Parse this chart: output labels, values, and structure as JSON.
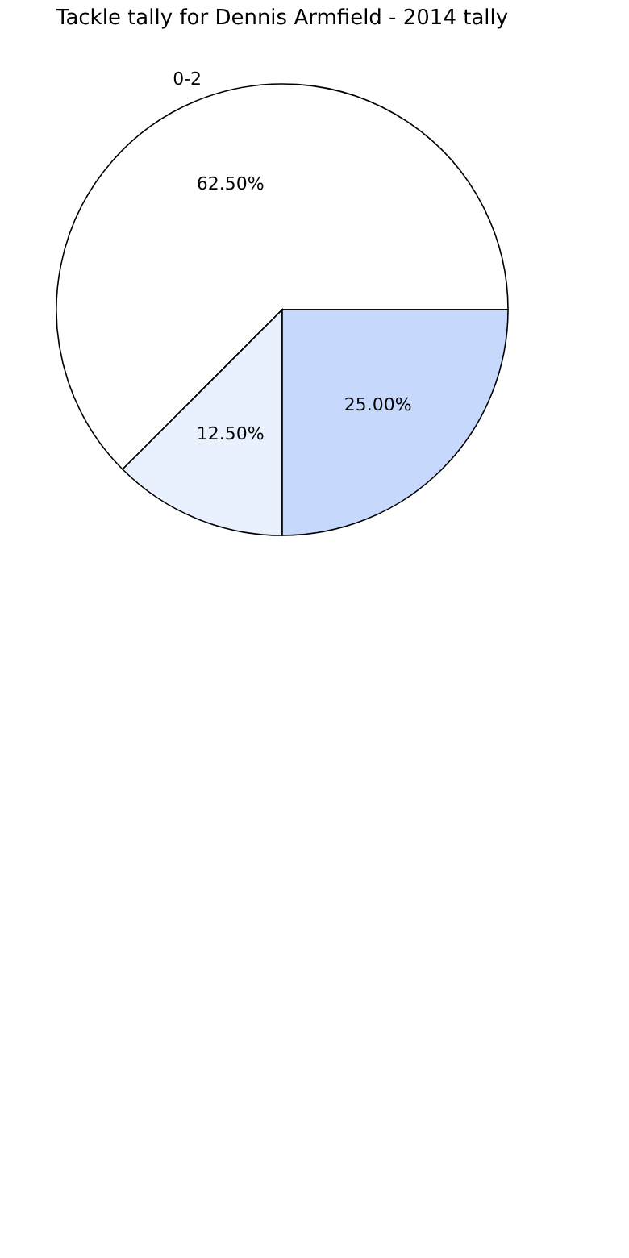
{
  "chart_data": {
    "type": "pie",
    "title": "Tackle tally for Dennis Armfield - 2014 tally",
    "categories": [
      "0-2",
      null,
      null
    ],
    "values": [
      62.5,
      12.5,
      25
    ],
    "colors": [
      "#ffffff",
      "#eaf1fe",
      "#c6d9fd"
    ],
    "value_labels": [
      "62.50%",
      "12.50%",
      "25.00%"
    ]
  }
}
